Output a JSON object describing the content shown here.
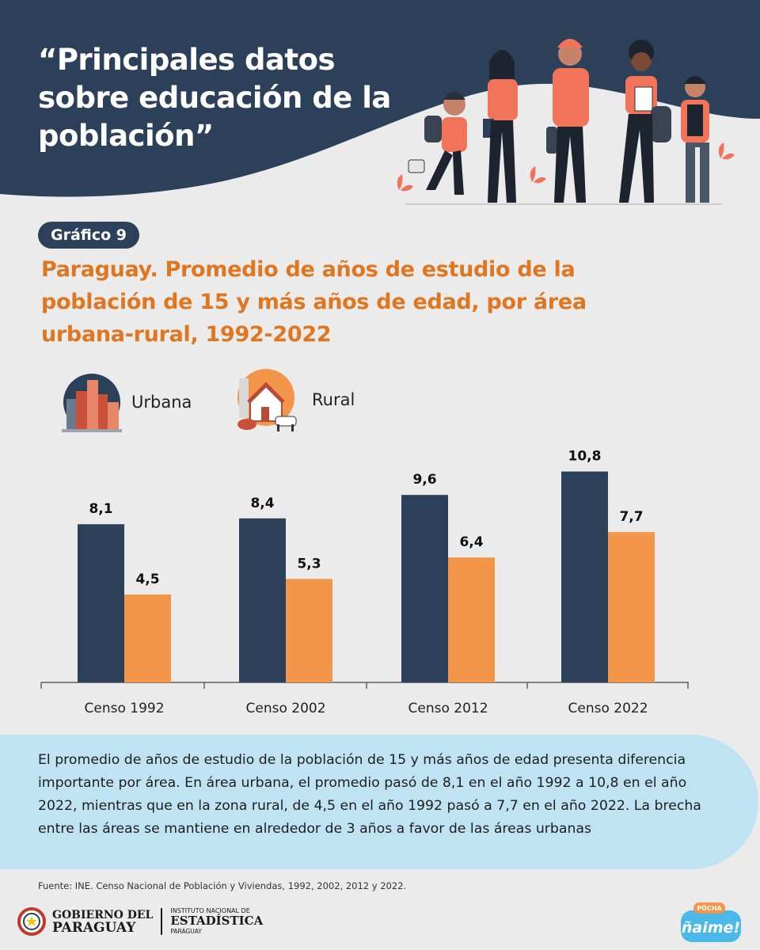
{
  "header": {
    "title": "“Principales datos sobre educación de la población”"
  },
  "badge": "Gráfico 9",
  "chart_title": "Paraguay. Promedio de años de estudio de la población de 15 y más años de edad, por área urbana-rural, 1992-2022",
  "legend": {
    "urban": "Urbana",
    "rural": "Rural"
  },
  "colors": {
    "urban": "#2d4059",
    "rural": "#f4964a",
    "title": "#e0761f",
    "header": "#2d4059",
    "info_bg": "#bfe3f3"
  },
  "chart_data": {
    "type": "bar",
    "categories": [
      "Censo 1992",
      "Censo 2002",
      "Censo 2012",
      "Censo 2022"
    ],
    "series": [
      {
        "name": "Urbana",
        "values": [
          8.1,
          8.4,
          9.6,
          10.8
        ],
        "labels": [
          "8,1",
          "8,4",
          "9,6",
          "10,8"
        ]
      },
      {
        "name": "Rural",
        "values": [
          4.5,
          5.3,
          6.4,
          7.7
        ],
        "labels": [
          "4,5",
          "5,3",
          "6,4",
          "7,7"
        ]
      }
    ],
    "ylim": [
      0,
      12
    ],
    "grid": false,
    "legend_position": "top-left"
  },
  "info": "El promedio de años de estudio de la población de 15 y más años de edad presenta diferencia importante por área. En área urbana, el promedio pasó de  8,1 en el año 1992  a 10,8  en el año 2022, mientras que  en la zona rural, de 4,5 en el año 1992 pasó a 7,7 en el año 2022. La brecha entre las áreas se mantiene en alrededor de 3 años a favor de las áreas urbanas",
  "source": "Fuente: INE. Censo Nacional de Población y Viviendas, 1992, 2002, 2012 y 2022.",
  "footer": {
    "gov_line1": "GOBIERNO DEL",
    "gov_line2": "PARAGUAY",
    "ine_line1": "INSTITUTO NACIONAL DE",
    "ine_line2": "ESTADÍSTICA",
    "ine_line3": "PARAGUAY",
    "brand_small": "PÓCHA",
    "brand_main": "ñaime!"
  }
}
